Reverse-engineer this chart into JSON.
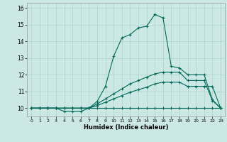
{
  "title": "",
  "xlabel": "Humidex (Indice chaleur)",
  "background_color": "#cce8e4",
  "grid_color": "#aad4cc",
  "line_color": "#006858",
  "xlim": [
    -0.5,
    23.5
  ],
  "ylim": [
    9.5,
    16.3
  ],
  "xticks": [
    0,
    1,
    2,
    3,
    4,
    5,
    6,
    7,
    8,
    9,
    10,
    11,
    12,
    13,
    14,
    15,
    16,
    17,
    18,
    19,
    20,
    21,
    22,
    23
  ],
  "yticks": [
    10,
    11,
    12,
    13,
    14,
    15,
    16
  ],
  "series": [
    {
      "x": [
        0,
        1,
        2,
        3,
        4,
        5,
        6,
        7,
        8,
        9,
        10,
        11,
        12,
        13,
        14,
        15,
        16,
        17,
        18,
        19,
        20,
        21,
        22,
        23
      ],
      "y": [
        10,
        10,
        10,
        10,
        9.8,
        9.8,
        9.8,
        10,
        10.4,
        11.3,
        13.1,
        14.2,
        14.4,
        14.8,
        14.9,
        15.6,
        15.4,
        12.5,
        12.4,
        12.0,
        12.0,
        12.0,
        10.5,
        10.0
      ]
    },
    {
      "x": [
        0,
        1,
        2,
        3,
        4,
        5,
        6,
        7,
        8,
        9,
        10,
        11,
        12,
        13,
        14,
        15,
        16,
        17,
        18,
        19,
        20,
        21,
        22,
        23
      ],
      "y": [
        10,
        10,
        10,
        10,
        10,
        10,
        10,
        10,
        10,
        10,
        10,
        10,
        10,
        10,
        10,
        10,
        10,
        10,
        10,
        10,
        10,
        10,
        10,
        10
      ]
    },
    {
      "x": [
        0,
        1,
        2,
        3,
        4,
        5,
        6,
        7,
        8,
        9,
        10,
        11,
        12,
        13,
        14,
        15,
        16,
        17,
        18,
        19,
        20,
        21,
        22,
        23
      ],
      "y": [
        10,
        10,
        10,
        10,
        10,
        10,
        10,
        10,
        10.15,
        10.35,
        10.55,
        10.75,
        10.95,
        11.1,
        11.25,
        11.45,
        11.55,
        11.55,
        11.55,
        11.3,
        11.3,
        11.3,
        11.3,
        10.0
      ]
    },
    {
      "x": [
        0,
        1,
        2,
        3,
        4,
        5,
        6,
        7,
        8,
        9,
        10,
        11,
        12,
        13,
        14,
        15,
        16,
        17,
        18,
        19,
        20,
        21,
        22,
        23
      ],
      "y": [
        10,
        10,
        10,
        10,
        10,
        10,
        10,
        10,
        10.25,
        10.55,
        10.85,
        11.15,
        11.45,
        11.65,
        11.85,
        12.05,
        12.15,
        12.15,
        12.15,
        11.65,
        11.65,
        11.65,
        10.45,
        10.0
      ]
    }
  ]
}
